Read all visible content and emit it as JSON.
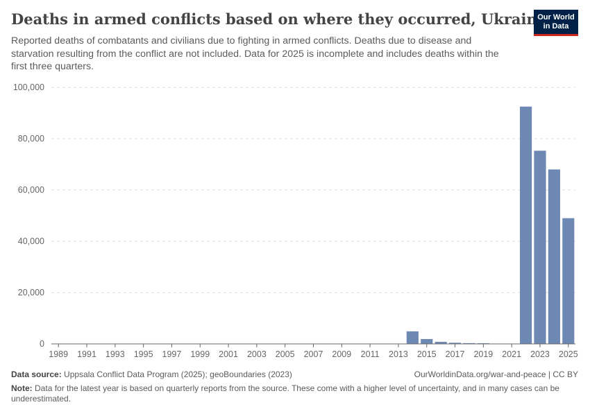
{
  "header": {
    "title": "Deaths in armed conflicts based on where they occurred, Ukraine",
    "subtitle": "Reported deaths of combatants and civilians due to fighting in armed conflicts. Deaths due to disease and starvation resulting from the conflict are not included. Data for 2025 is incomplete and includes deaths within the first three quarters."
  },
  "logo": {
    "line1": "Our World",
    "line2": "in Data"
  },
  "footer": {
    "source_label": "Data source:",
    "source_text": "Uppsala Conflict Data Program (2025); geoBoundaries (2023)",
    "url": "OurWorldinData.org/war-and-peace | CC BY",
    "note_label": "Note:",
    "note_text": "Data for the latest year is based on quarterly reports from the source. These come with a higher level of uncertainty, and in many cases can be underestimated."
  },
  "colors": {
    "bar": "#6d88b3",
    "grid": "#dddddd",
    "axis": "#666666"
  },
  "chart_data": {
    "type": "bar",
    "title": "Deaths in armed conflicts based on where they occurred, Ukraine",
    "xlabel": "",
    "ylabel": "",
    "ylim": [
      0,
      100000
    ],
    "yticks": [
      0,
      20000,
      40000,
      60000,
      80000,
      100000
    ],
    "ytick_labels": [
      "0",
      "20,000",
      "40,000",
      "60,000",
      "80,000",
      "100,000"
    ],
    "xtick_labels": [
      "1989",
      "1991",
      "1993",
      "1995",
      "1997",
      "1999",
      "2001",
      "2003",
      "2005",
      "2007",
      "2009",
      "2011",
      "2013",
      "2015",
      "2017",
      "2019",
      "2021",
      "2023",
      "2025"
    ],
    "grid": true,
    "categories": [
      1989,
      1990,
      1991,
      1992,
      1993,
      1994,
      1995,
      1996,
      1997,
      1998,
      1999,
      2000,
      2001,
      2002,
      2003,
      2004,
      2005,
      2006,
      2007,
      2008,
      2009,
      2010,
      2011,
      2012,
      2013,
      2014,
      2015,
      2016,
      2017,
      2018,
      2019,
      2020,
      2021,
      2022,
      2023,
      2024,
      2025
    ],
    "values": [
      0,
      0,
      0,
      0,
      0,
      0,
      0,
      0,
      0,
      0,
      0,
      0,
      0,
      0,
      0,
      0,
      0,
      0,
      0,
      0,
      0,
      0,
      0,
      0,
      0,
      4900,
      1900,
      800,
      450,
      300,
      250,
      100,
      100,
      92500,
      75300,
      68000,
      49000
    ]
  }
}
